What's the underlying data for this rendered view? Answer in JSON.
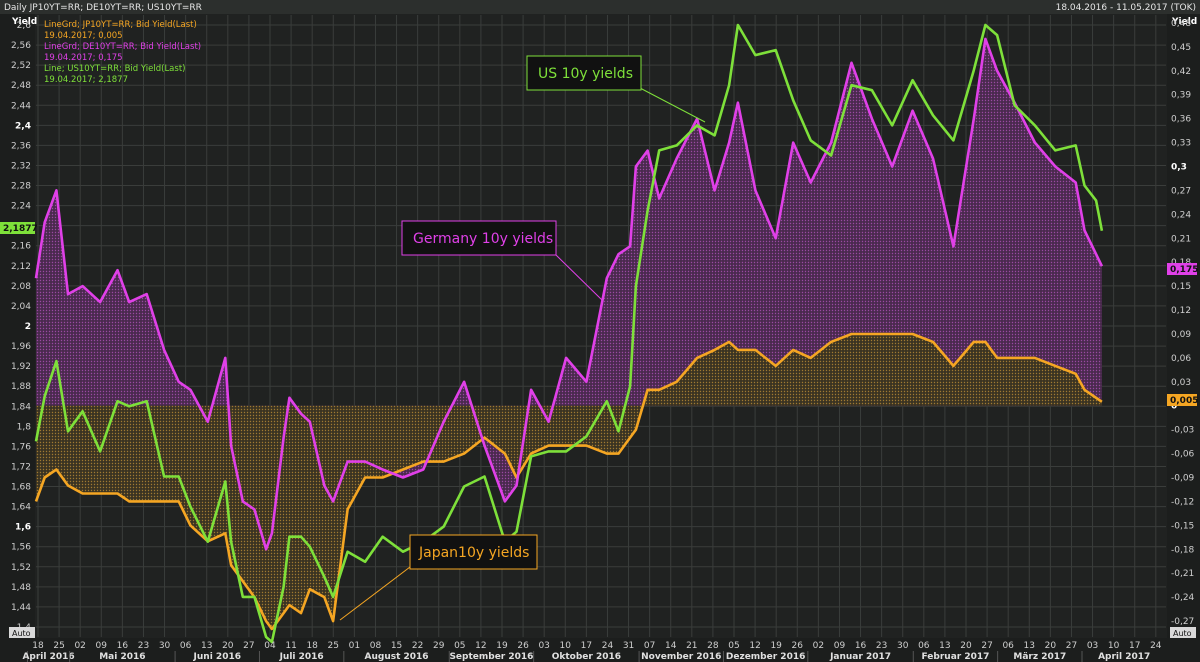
{
  "header": {
    "title": "Daily JP10YT=RR; DE10YT=RR; US10YT=RR",
    "range": "18.04.2016 - 11.05.2017 (TOK)"
  },
  "left_axis": {
    "label": "Yield",
    "ticks": [
      "2,6",
      "2,56",
      "2,52",
      "2,48",
      "2,44",
      "2,4",
      "2,36",
      "2,32",
      "2,28",
      "2,24",
      "2,2",
      "2,16",
      "2,12",
      "2,08",
      "2,04",
      "2",
      "1,96",
      "1,92",
      "1,88",
      "1,84",
      "1,8",
      "1,76",
      "1,72",
      "1,68",
      "1,64",
      "1,6",
      "1,56",
      "1,52",
      "1,48",
      "1,44",
      "1,4"
    ],
    "bold_ticks": [
      "2,4",
      "2",
      "1,6"
    ],
    "auto": "Auto"
  },
  "right_axis": {
    "label": "Yield",
    "ticks": [
      "0,48",
      "0,45",
      "0,42",
      "0,39",
      "0,36",
      "0,33",
      "0,3",
      "0,27",
      "0,24",
      "0,21",
      "0,18",
      "0,15",
      "0,12",
      "0,09",
      "0,06",
      "0,03",
      "0",
      "-0,03",
      "-0,06",
      "-0,09",
      "-0,12",
      "-0,15",
      "-0,18",
      "-0,21",
      "-0,24",
      "-0,27"
    ],
    "bold_ticks": [
      "0,3",
      "0"
    ],
    "auto": "Auto"
  },
  "legend": [
    {
      "line1": "LineGrd; JP10YT=RR; Bid Yield(Last)",
      "line2": "19.04.2017; 0,005",
      "color": "#f5a623"
    },
    {
      "line1": "LineGrd; DE10YT=RR; Bid Yield(Last)",
      "line2": "19.04.2017; 0,175",
      "color": "#e040e8"
    },
    {
      "line1": "Line; US10YT=RR; Bid Yield(Last)",
      "line2": "19.04.2017; 2,1877",
      "color": "#7ee03a"
    }
  ],
  "last_value_tags": {
    "us": "2,1877",
    "de": "0,175",
    "jp": "0,005"
  },
  "callouts": {
    "us": "US 10y yields",
    "de": "Germany 10y yields",
    "jp": "Japan10y yields"
  },
  "x_axis": {
    "day_ticks": [
      "18",
      "25",
      "02",
      "09",
      "16",
      "23",
      "30",
      "06",
      "13",
      "20",
      "27",
      "04",
      "11",
      "18",
      "25",
      "01",
      "08",
      "15",
      "22",
      "29",
      "05",
      "12",
      "19",
      "26",
      "03",
      "10",
      "17",
      "24",
      "31",
      "07",
      "14",
      "21",
      "28",
      "05",
      "12",
      "19",
      "26",
      "02",
      "09",
      "16",
      "23",
      "30",
      "06",
      "13",
      "20",
      "27",
      "06",
      "13",
      "20",
      "27",
      "03",
      "10",
      "17",
      "24",
      "01"
    ],
    "months": [
      "April 2016",
      "Mai 2016",
      "Juni 2016",
      "Juli 2016",
      "August 2016",
      "September 2016",
      "Oktober 2016",
      "November 2016",
      "Dezember 2016",
      "Januar 2017",
      "Februar 2017",
      "März 2017",
      "April 2017"
    ]
  },
  "colors": {
    "us": "#7ee03a",
    "de": "#e040e8",
    "jp": "#f5a623",
    "background": "#202221",
    "grid": "#3a3d3b"
  },
  "chart_data": {
    "type": "line",
    "title": "Daily JP10YT=RR; DE10YT=RR; US10YT=RR",
    "x_range": [
      "18.04.2016",
      "11.05.2017"
    ],
    "left_ylim": [
      1.38,
      2.62
    ],
    "right_ylim": [
      -0.29,
      0.49
    ],
    "grid": true,
    "legend_position": "top-left",
    "series": [
      {
        "name": "US10YT=RR",
        "axis": "left",
        "x": [
          "18.04.2016",
          "21.04.2016",
          "25.04.2016",
          "29.04.2016",
          "04.05.2016",
          "10.05.2016",
          "16.05.2016",
          "20.05.2016",
          "26.05.2016",
          "01.06.2016",
          "06.06.2016",
          "10.06.2016",
          "16.06.2016",
          "22.06.2016",
          "24.06.2016",
          "28.06.2016",
          "02.07.2016",
          "06.07.2016",
          "08.07.2016",
          "12.07.2016",
          "14.07.2016",
          "18.07.2016",
          "21.07.2016",
          "26.07.2016",
          "29.07.2016",
          "03.08.2016",
          "09.08.2016",
          "15.08.2016",
          "22.08.2016",
          "29.08.2016",
          "05.09.2016",
          "12.09.2016",
          "19.09.2016",
          "26.09.2016",
          "30.09.2016",
          "05.10.2016",
          "11.10.2016",
          "17.10.2016",
          "24.10.2016",
          "31.10.2016",
          "04.11.2016",
          "08.11.2016",
          "10.11.2016",
          "14.11.2016",
          "18.11.2016",
          "24.11.2016",
          "01.12.2016",
          "07.12.2016",
          "12.12.2016",
          "15.12.2016",
          "21.12.2016",
          "28.12.2016",
          "03.01.2017",
          "09.01.2017",
          "16.01.2017",
          "23.01.2017",
          "30.01.2017",
          "06.02.2017",
          "13.02.2017",
          "20.02.2017",
          "27.02.2017",
          "06.03.2017",
          "10.03.2017",
          "14.03.2017",
          "20.03.2017",
          "27.03.2017",
          "03.04.2017",
          "10.04.2017",
          "13.04.2017",
          "17.04.2017",
          "19.04.2017"
        ],
        "y": [
          1.77,
          1.86,
          1.93,
          1.79,
          1.83,
          1.75,
          1.85,
          1.84,
          1.85,
          1.7,
          1.7,
          1.64,
          1.57,
          1.69,
          1.57,
          1.46,
          1.46,
          1.38,
          1.37,
          1.48,
          1.58,
          1.58,
          1.56,
          1.5,
          1.46,
          1.55,
          1.53,
          1.58,
          1.55,
          1.57,
          1.6,
          1.68,
          1.7,
          1.57,
          1.59,
          1.74,
          1.75,
          1.75,
          1.78,
          1.85,
          1.79,
          1.88,
          2.08,
          2.23,
          2.35,
          2.36,
          2.4,
          2.38,
          2.48,
          2.6,
          2.54,
          2.55,
          2.45,
          2.37,
          2.34,
          2.48,
          2.47,
          2.4,
          2.49,
          2.42,
          2.37,
          2.51,
          2.6,
          2.58,
          2.44,
          2.4,
          2.35,
          2.36,
          2.28,
          2.25,
          2.19
        ]
      },
      {
        "name": "DE10YT=RR",
        "axis": "right",
        "x": [
          "18.04.2016",
          "21.04.2016",
          "25.04.2016",
          "29.04.2016",
          "04.05.2016",
          "10.05.2016",
          "16.05.2016",
          "20.05.2016",
          "26.05.2016",
          "01.06.2016",
          "06.06.2016",
          "10.06.2016",
          "16.06.2016",
          "22.06.2016",
          "24.06.2016",
          "28.06.2016",
          "02.07.2016",
          "06.07.2016",
          "08.07.2016",
          "12.07.2016",
          "14.07.2016",
          "18.07.2016",
          "21.07.2016",
          "26.07.2016",
          "29.07.2016",
          "03.08.2016",
          "09.08.2016",
          "15.08.2016",
          "22.08.2016",
          "29.08.2016",
          "05.09.2016",
          "12.09.2016",
          "19.09.2016",
          "26.09.2016",
          "30.09.2016",
          "05.10.2016",
          "11.10.2016",
          "17.10.2016",
          "24.10.2016",
          "31.10.2016",
          "04.11.2016",
          "08.11.2016",
          "10.11.2016",
          "14.11.2016",
          "18.11.2016",
          "24.11.2016",
          "01.12.2016",
          "07.12.2016",
          "12.12.2016",
          "15.12.2016",
          "21.12.2016",
          "28.12.2016",
          "03.01.2017",
          "09.01.2017",
          "16.01.2017",
          "23.01.2017",
          "30.01.2017",
          "06.02.2017",
          "13.02.2017",
          "20.02.2017",
          "27.02.2017",
          "06.03.2017",
          "10.03.2017",
          "14.03.2017",
          "20.03.2017",
          "27.03.2017",
          "03.04.2017",
          "10.04.2017",
          "13.04.2017",
          "17.04.2017",
          "19.04.2017"
        ],
        "y": [
          0.16,
          0.23,
          0.27,
          0.14,
          0.15,
          0.13,
          0.17,
          0.13,
          0.14,
          0.07,
          0.03,
          0.02,
          -0.02,
          0.06,
          -0.05,
          -0.12,
          -0.13,
          -0.18,
          -0.16,
          -0.04,
          0.01,
          -0.01,
          -0.02,
          -0.1,
          -0.12,
          -0.07,
          -0.07,
          -0.08,
          -0.09,
          -0.08,
          -0.02,
          0.03,
          -0.05,
          -0.12,
          -0.1,
          0.02,
          -0.02,
          0.06,
          0.03,
          0.16,
          0.19,
          0.2,
          0.3,
          0.32,
          0.26,
          0.31,
          0.36,
          0.27,
          0.33,
          0.38,
          0.27,
          0.21,
          0.33,
          0.28,
          0.33,
          0.43,
          0.36,
          0.3,
          0.37,
          0.31,
          0.2,
          0.36,
          0.46,
          0.42,
          0.38,
          0.33,
          0.3,
          0.28,
          0.22,
          0.19,
          0.175
        ]
      },
      {
        "name": "JP10YT=RR",
        "axis": "right",
        "x": [
          "18.04.2016",
          "21.04.2016",
          "25.04.2016",
          "29.04.2016",
          "04.05.2016",
          "10.05.2016",
          "16.05.2016",
          "20.05.2016",
          "26.05.2016",
          "01.06.2016",
          "06.06.2016",
          "10.06.2016",
          "16.06.2016",
          "22.06.2016",
          "24.06.2016",
          "28.06.2016",
          "02.07.2016",
          "06.07.2016",
          "08.07.2016",
          "12.07.2016",
          "14.07.2016",
          "18.07.2016",
          "21.07.2016",
          "26.07.2016",
          "29.07.2016",
          "03.08.2016",
          "09.08.2016",
          "15.08.2016",
          "22.08.2016",
          "29.08.2016",
          "05.09.2016",
          "12.09.2016",
          "19.09.2016",
          "26.09.2016",
          "30.09.2016",
          "05.10.2016",
          "11.10.2016",
          "17.10.2016",
          "24.10.2016",
          "31.10.2016",
          "04.11.2016",
          "08.11.2016",
          "10.11.2016",
          "14.11.2016",
          "18.11.2016",
          "24.11.2016",
          "01.12.2016",
          "07.12.2016",
          "12.12.2016",
          "15.12.2016",
          "21.12.2016",
          "28.12.2016",
          "03.01.2017",
          "09.01.2017",
          "16.01.2017",
          "23.01.2017",
          "30.01.2017",
          "06.02.2017",
          "13.02.2017",
          "20.02.2017",
          "27.02.2017",
          "06.03.2017",
          "10.03.2017",
          "14.03.2017",
          "20.03.2017",
          "27.03.2017",
          "03.04.2017",
          "10.04.2017",
          "13.04.2017",
          "17.04.2017",
          "19.04.2017"
        ],
        "y": [
          -0.12,
          -0.09,
          -0.08,
          -0.1,
          -0.11,
          -0.11,
          -0.11,
          -0.12,
          -0.12,
          -0.12,
          -0.12,
          -0.15,
          -0.17,
          -0.16,
          -0.2,
          -0.22,
          -0.24,
          -0.27,
          -0.28,
          -0.26,
          -0.25,
          -0.26,
          -0.23,
          -0.24,
          -0.27,
          -0.13,
          -0.09,
          -0.09,
          -0.08,
          -0.07,
          -0.07,
          -0.06,
          -0.04,
          -0.06,
          -0.09,
          -0.06,
          -0.05,
          -0.05,
          -0.05,
          -0.06,
          -0.06,
          -0.04,
          -0.03,
          0.02,
          0.02,
          0.03,
          0.06,
          0.07,
          0.08,
          0.07,
          0.07,
          0.05,
          0.07,
          0.06,
          0.08,
          0.09,
          0.09,
          0.09,
          0.09,
          0.08,
          0.05,
          0.08,
          0.08,
          0.06,
          0.06,
          0.06,
          0.05,
          0.04,
          0.02,
          0.01,
          0.005
        ]
      }
    ]
  }
}
